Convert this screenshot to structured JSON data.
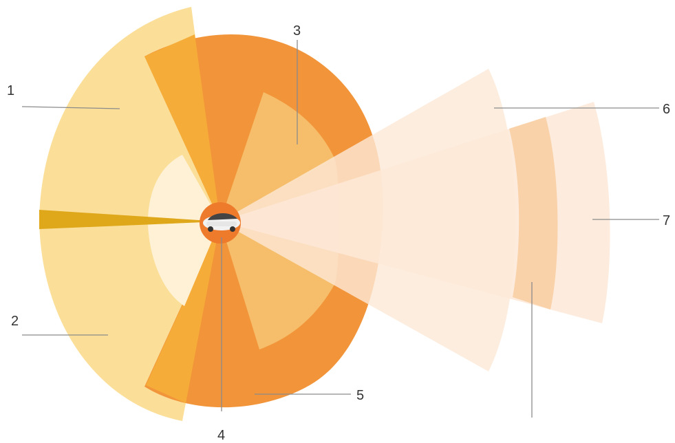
{
  "labels": {
    "l1": "1",
    "l2": "2",
    "l3": "3",
    "l4": "4",
    "l5": "5",
    "l6": "6",
    "l7": "7"
  },
  "colors": {
    "pale_yellow": "#fbdf98",
    "cream": "#fff1d6",
    "amber": "#f6ac38",
    "orange": "#f2953a",
    "tan": "#f6be6a",
    "gold_wedge": "#dfa71a",
    "peach_light": "#fde9d7",
    "peach_band": "#f9cfa4",
    "car_disc": "#ee7a2c",
    "car_body": "#f2f2f2",
    "leader": "#8a8a8a"
  },
  "icons": {
    "vehicle": "car-icon"
  }
}
